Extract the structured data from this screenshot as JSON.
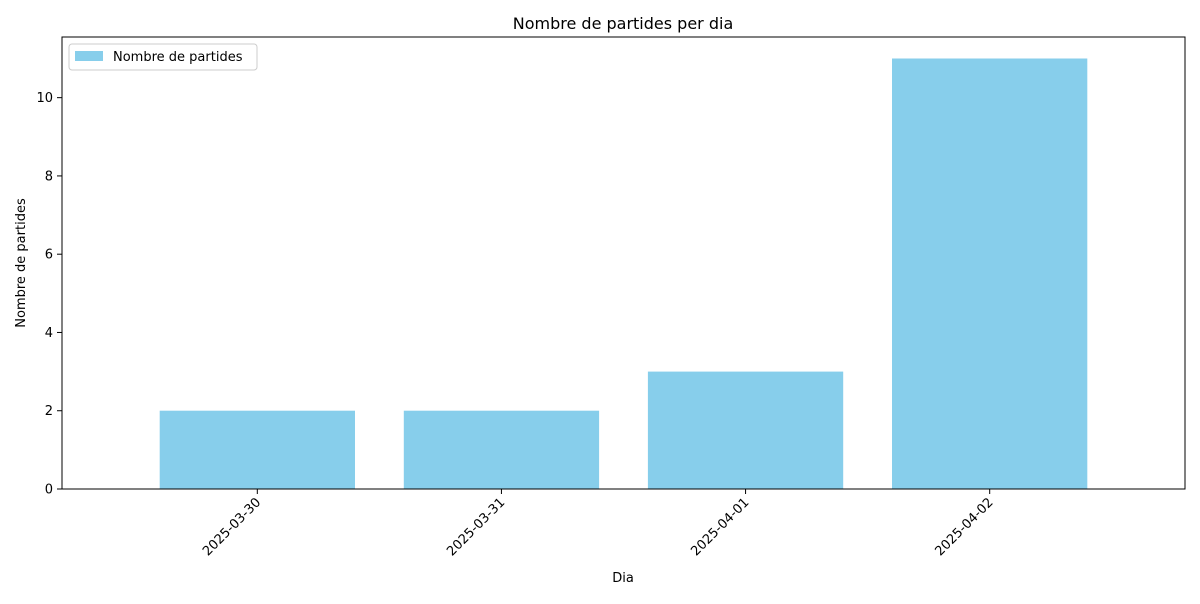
{
  "chart_data": {
    "type": "bar",
    "title": "Nombre de partides per dia",
    "xlabel": "Dia",
    "ylabel": "Nombre de partides",
    "categories": [
      "2025-03-30",
      "2025-03-31",
      "2025-04-01",
      "2025-04-02"
    ],
    "series": [
      {
        "name": "Nombre de partides",
        "values": [
          2,
          2,
          3,
          11
        ],
        "color": "#87ceeb"
      }
    ],
    "ylim": [
      0,
      11.55
    ],
    "yticks": [
      0,
      2,
      4,
      6,
      8,
      10
    ],
    "grid": false,
    "legend": {
      "position": "top-left"
    },
    "x_tick_rotation": "45"
  }
}
